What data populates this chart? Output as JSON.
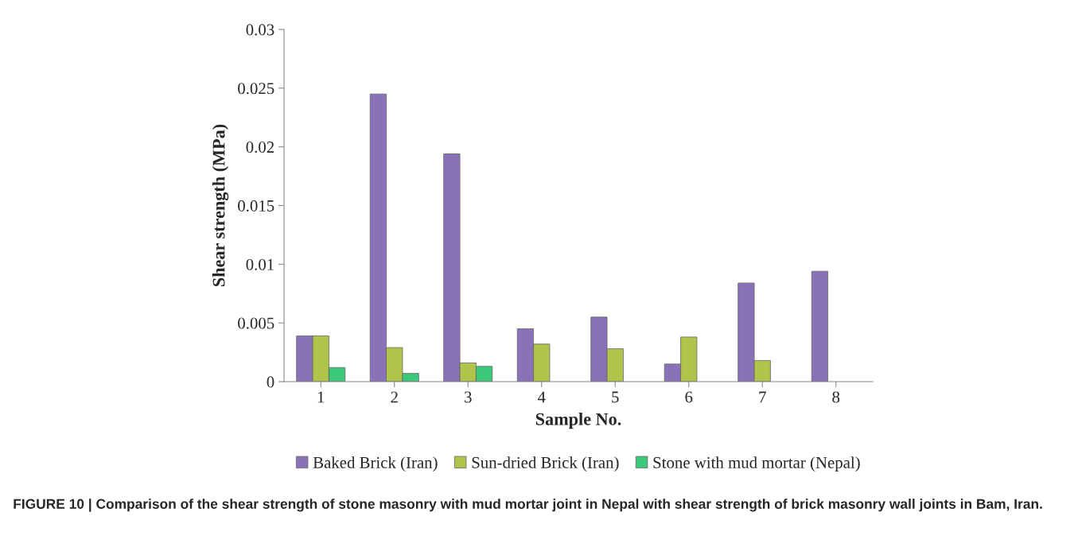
{
  "chart_data": {
    "type": "bar",
    "xlabel": "Sample No.",
    "ylabel": "Shear strength (MPa)",
    "categories": [
      "1",
      "2",
      "3",
      "4",
      "5",
      "6",
      "7",
      "8"
    ],
    "series": [
      {
        "name": "Baked Brick (Iran)",
        "color": "#8a72b8",
        "values": [
          0.0039,
          0.0245,
          0.0194,
          0.0045,
          0.0055,
          0.0015,
          0.0084,
          0.0094
        ]
      },
      {
        "name": "Sun-dried Brick (Iran)",
        "color": "#b0c44c",
        "values": [
          0.0039,
          0.0029,
          0.0016,
          0.0032,
          0.0028,
          0.0038,
          0.0018,
          null
        ]
      },
      {
        "name": "Stone with mud mortar (Nepal)",
        "color": "#3cc87a",
        "values": [
          0.0012,
          0.0007,
          0.0013,
          null,
          null,
          null,
          null,
          null
        ]
      }
    ],
    "ylim": [
      0,
      0.03
    ],
    "yticks": [
      0,
      0.005,
      0.01,
      0.015,
      0.02,
      0.025,
      0.03
    ],
    "grid": false,
    "legend": "bottom",
    "annotations": [
      "FIGURE 10 | Comparison of the shear strength of stone masonry with mud mortar joint in Nepal with shear strength of brick masonry wall joints in Bam, Iran."
    ]
  }
}
